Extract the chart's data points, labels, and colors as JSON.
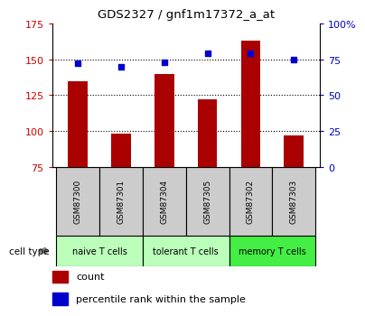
{
  "title": "GDS2327 / gnf1m17372_a_at",
  "samples": [
    "GSM87300",
    "GSM87301",
    "GSM87304",
    "GSM87305",
    "GSM87302",
    "GSM87303"
  ],
  "counts": [
    135,
    98,
    140,
    122,
    163,
    97
  ],
  "percentiles": [
    72,
    70,
    73,
    79,
    79,
    75
  ],
  "ylim_left": [
    75,
    175
  ],
  "ylim_right": [
    0,
    100
  ],
  "yticks_left": [
    75,
    100,
    125,
    150,
    175
  ],
  "yticks_right": [
    0,
    25,
    50,
    75,
    100
  ],
  "ytick_labels_right": [
    "0",
    "25",
    "50",
    "75",
    "100%"
  ],
  "bar_color": "#aa0000",
  "dot_color": "#0000cc",
  "bar_width": 0.45,
  "left_tick_color": "#cc0000",
  "right_tick_color": "#0000cc",
  "cell_type_groups": [
    {
      "label": "naive T cells",
      "xstart": -0.5,
      "xend": 1.5,
      "color": "#bbffbb"
    },
    {
      "label": "tolerant T cells",
      "xstart": 1.5,
      "xend": 3.5,
      "color": "#bbffbb"
    },
    {
      "label": "memory T cells",
      "xstart": 3.5,
      "xend": 5.5,
      "color": "#44ee44"
    }
  ],
  "sample_box_color": "#cccccc",
  "legend_count_label": "count",
  "legend_pct_label": "percentile rank within the sample",
  "cell_type_label": "cell type",
  "bg_color": "#ffffff"
}
